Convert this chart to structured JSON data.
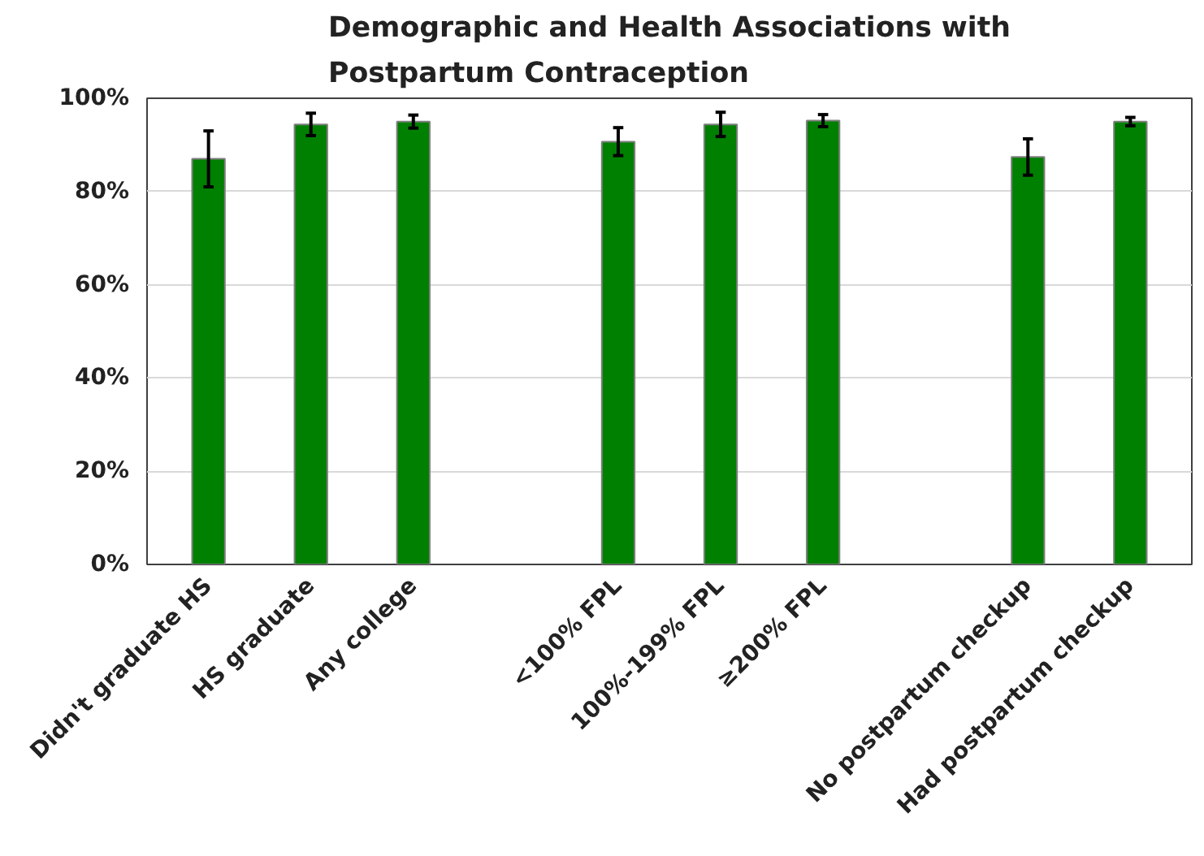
{
  "chart_data": {
    "type": "bar",
    "title": "Demographic and Health Associations with\nPostpartum Contraception",
    "categories": [
      "Didn't graduate HS",
      "HS graduate",
      "Any college",
      null,
      "<100% FPL",
      "100%-199% FPL",
      "≥200% FPL",
      null,
      "No postpartum checkup",
      "Had postpartum checkup"
    ],
    "values": [
      87,
      94.4,
      95,
      null,
      90.7,
      94.4,
      95.2,
      null,
      87.4,
      95
    ],
    "errors": [
      6,
      2.4,
      1.4,
      null,
      3,
      2.6,
      1.3,
      null,
      3.9,
      0.9
    ],
    "color": "#008000",
    "ylim": [
      0,
      100
    ],
    "yticks": [
      {
        "value": 0,
        "label": "0%"
      },
      {
        "value": 20,
        "label": "20%"
      },
      {
        "value": 40,
        "label": "40%"
      },
      {
        "value": 60,
        "label": "60%"
      },
      {
        "value": 80,
        "label": "80%"
      },
      {
        "value": 100,
        "label": "100%"
      }
    ],
    "grid": "y"
  }
}
